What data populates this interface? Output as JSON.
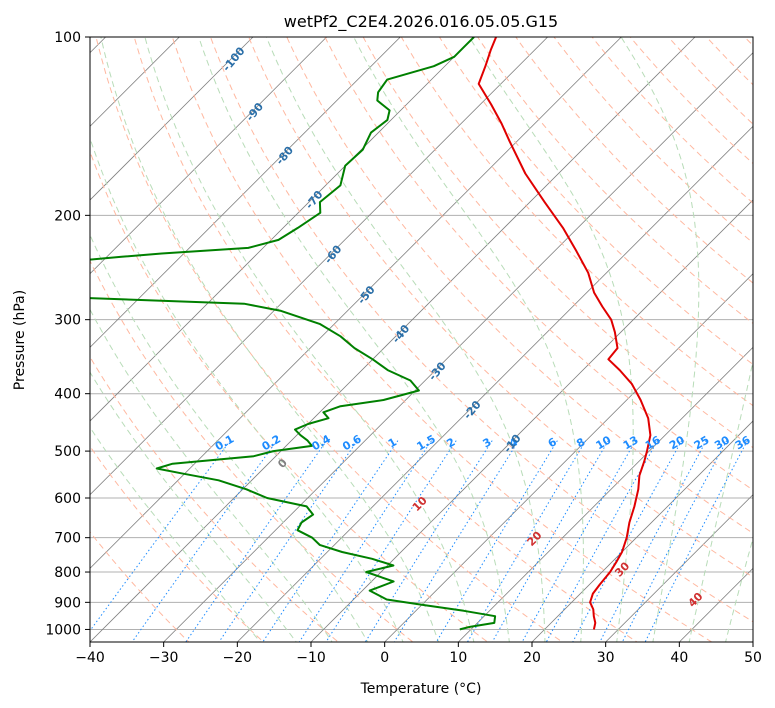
{
  "chart_data": {
    "type": "line",
    "subtype": "skew-t log-p sounding",
    "title": "wetPf2_C2E4.2026.016.05.05.G15",
    "xlabel": "Temperature (°C)",
    "ylabel": "Pressure (hPa)",
    "xlim": [
      -40,
      50
    ],
    "ylim": [
      1050,
      100
    ],
    "y_scale": "log",
    "x_ticks": [
      -40,
      -30,
      -20,
      -10,
      0,
      10,
      20,
      30,
      40,
      50
    ],
    "y_ticks": [
      100,
      200,
      300,
      400,
      500,
      600,
      700,
      800,
      900,
      1000
    ],
    "grid": true,
    "series": [
      {
        "key": "temperature",
        "color": "#e00000",
        "points": [
          [
            1000,
            26.7
          ],
          [
            975,
            26.0
          ],
          [
            950,
            24.9
          ],
          [
            925,
            23.9
          ],
          [
            900,
            22.5
          ],
          [
            870,
            21.7
          ],
          [
            840,
            21.4
          ],
          [
            800,
            21.1
          ],
          [
            770,
            20.6
          ],
          [
            740,
            20.0
          ],
          [
            700,
            18.7
          ],
          [
            660,
            17.0
          ],
          [
            620,
            15.5
          ],
          [
            580,
            13.7
          ],
          [
            550,
            12.0
          ],
          [
            520,
            10.7
          ],
          [
            500,
            9.7
          ],
          [
            470,
            8.0
          ],
          [
            440,
            5.4
          ],
          [
            410,
            1.9
          ],
          [
            385,
            -1.5
          ],
          [
            365,
            -5.0
          ],
          [
            350,
            -8.0
          ],
          [
            335,
            -8.3
          ],
          [
            315,
            -10.8
          ],
          [
            300,
            -13.0
          ],
          [
            285,
            -16.0
          ],
          [
            270,
            -19.0
          ],
          [
            250,
            -22.5
          ],
          [
            230,
            -27.0
          ],
          [
            210,
            -32.0
          ],
          [
            190,
            -38.0
          ],
          [
            170,
            -44.5
          ],
          [
            150,
            -51.0
          ],
          [
            140,
            -54.5
          ],
          [
            130,
            -58.5
          ],
          [
            120,
            -63.0
          ],
          [
            112,
            -64.5
          ],
          [
            105,
            -66.0
          ],
          [
            100,
            -67.0
          ]
        ]
      },
      {
        "key": "dewpoint",
        "color": "#008000",
        "points": [
          [
            1000,
            8.5
          ],
          [
            990,
            9.5
          ],
          [
            975,
            12.3
          ],
          [
            950,
            11.5
          ],
          [
            930,
            6.5
          ],
          [
            910,
            0.5
          ],
          [
            890,
            -5.5
          ],
          [
            860,
            -9.0
          ],
          [
            830,
            -7.0
          ],
          [
            800,
            -12.0
          ],
          [
            780,
            -9.2
          ],
          [
            760,
            -13.0
          ],
          [
            740,
            -18.0
          ],
          [
            720,
            -22.0
          ],
          [
            700,
            -24.0
          ],
          [
            680,
            -27.0
          ],
          [
            660,
            -27.5
          ],
          [
            640,
            -27.0
          ],
          [
            620,
            -29.0
          ],
          [
            600,
            -35.5
          ],
          [
            580,
            -39.5
          ],
          [
            560,
            -44.5
          ],
          [
            545,
            -50.5
          ],
          [
            535,
            -54.5
          ],
          [
            525,
            -53.0
          ],
          [
            510,
            -43.0
          ],
          [
            500,
            -41.0
          ],
          [
            490,
            -36.5
          ],
          [
            480,
            -37.8
          ],
          [
            470,
            -39.5
          ],
          [
            460,
            -41.0
          ],
          [
            450,
            -40.0
          ],
          [
            440,
            -38.0
          ],
          [
            430,
            -39.5
          ],
          [
            420,
            -38.0
          ],
          [
            410,
            -33.0
          ],
          [
            395,
            -29.5
          ],
          [
            380,
            -32.0
          ],
          [
            365,
            -36.5
          ],
          [
            350,
            -40.0
          ],
          [
            335,
            -44.0
          ],
          [
            320,
            -47.5
          ],
          [
            305,
            -52.0
          ],
          [
            290,
            -59.0
          ],
          [
            282,
            -65.0
          ],
          [
            275,
            -90.0
          ],
          [
            270,
            -91.5
          ],
          [
            262,
            -90.5
          ],
          [
            255,
            -90.5
          ],
          [
            248,
            -92.5
          ],
          [
            243,
            -92.0
          ],
          [
            238,
            -92.5
          ],
          [
            235,
            -88.0
          ],
          [
            232,
            -83.0
          ],
          [
            227,
            -72.0
          ],
          [
            220,
            -69.0
          ],
          [
            210,
            -68.0
          ],
          [
            198,
            -67.0
          ],
          [
            190,
            -68.5
          ],
          [
            178,
            -68.0
          ],
          [
            165,
            -70.0
          ],
          [
            155,
            -69.8
          ],
          [
            145,
            -71.0
          ],
          [
            138,
            -70.5
          ],
          [
            133,
            -71.5
          ],
          [
            128,
            -74.5
          ],
          [
            124,
            -75.5
          ],
          [
            118,
            -76.0
          ],
          [
            112,
            -71.5
          ],
          [
            108,
            -70.0
          ],
          [
            104,
            -70.0
          ],
          [
            100,
            -70.0
          ]
        ]
      }
    ],
    "dry_adiabats_C": [
      -100,
      -90,
      -80,
      -70,
      -60,
      -50,
      -40,
      -30,
      -20,
      -10,
      0,
      10,
      20,
      30,
      40
    ],
    "moist_adiabats_C": [
      -20,
      -10,
      0,
      10,
      20,
      30,
      40,
      50
    ],
    "mixing_ratio_labels": [
      "0.1",
      "0.2",
      "0.4",
      "0.6",
      "1",
      "1.5",
      "2",
      "3",
      "4",
      "6",
      "8",
      "10",
      "13",
      "16",
      "20",
      "25",
      "30",
      "36"
    ],
    "mixing_ratio_values": [
      0.1,
      0.2,
      0.4,
      0.6,
      1,
      1.5,
      2,
      3,
      4,
      6,
      8,
      10,
      13,
      16,
      20,
      25,
      30,
      36
    ],
    "dry_adiabat_labels": [
      "-100",
      "-90",
      "-80",
      "-70",
      "-60",
      "-50",
      "-40",
      "-30",
      "-20",
      "-10"
    ],
    "moist_adiabat_labels": [
      "0",
      "10",
      "20",
      "30",
      "40"
    ],
    "colors": {
      "isotherm": "#808080",
      "isobar": "#b0b0b0",
      "dry_adiabat": "#ffb8a0",
      "moist_adiabat": "#b8dcb8",
      "mixing_ratio": "#1e8cff",
      "dry_label": "#2b6fa8",
      "moist_label_warm": "#d03030",
      "moist_label_zero": "#808080",
      "mixing_label": "#1e8cff"
    }
  }
}
